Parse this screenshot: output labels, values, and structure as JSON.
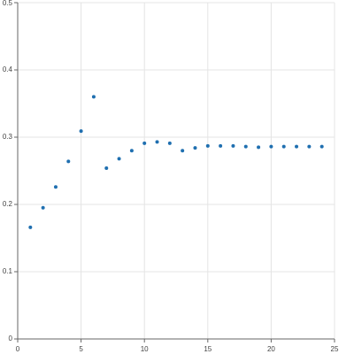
{
  "chart_data": {
    "type": "scatter",
    "x": [
      1,
      2,
      3,
      4,
      5,
      6,
      7,
      8,
      9,
      10,
      11,
      12,
      13,
      14,
      15,
      16,
      17,
      18,
      19,
      20,
      21,
      22,
      23,
      24
    ],
    "series": [
      {
        "color": "#1f6fb0",
        "values": [
          0.166,
          0.195,
          0.226,
          0.264,
          0.309,
          0.36,
          0.254,
          0.268,
          0.28,
          0.291,
          0.293,
          0.291,
          0.28,
          0.284,
          0.287,
          0.287,
          0.287,
          0.286,
          0.285,
          0.286,
          0.286,
          0.286,
          0.286,
          0.286
        ]
      }
    ],
    "xlim": [
      0,
      25
    ],
    "xticks": [
      0,
      5,
      10,
      15,
      20,
      25
    ],
    "ylim": [
      0,
      0.5
    ],
    "yticks": [
      0,
      0.1,
      0.2,
      0.3,
      0.4,
      0.5
    ],
    "grid": true
  }
}
